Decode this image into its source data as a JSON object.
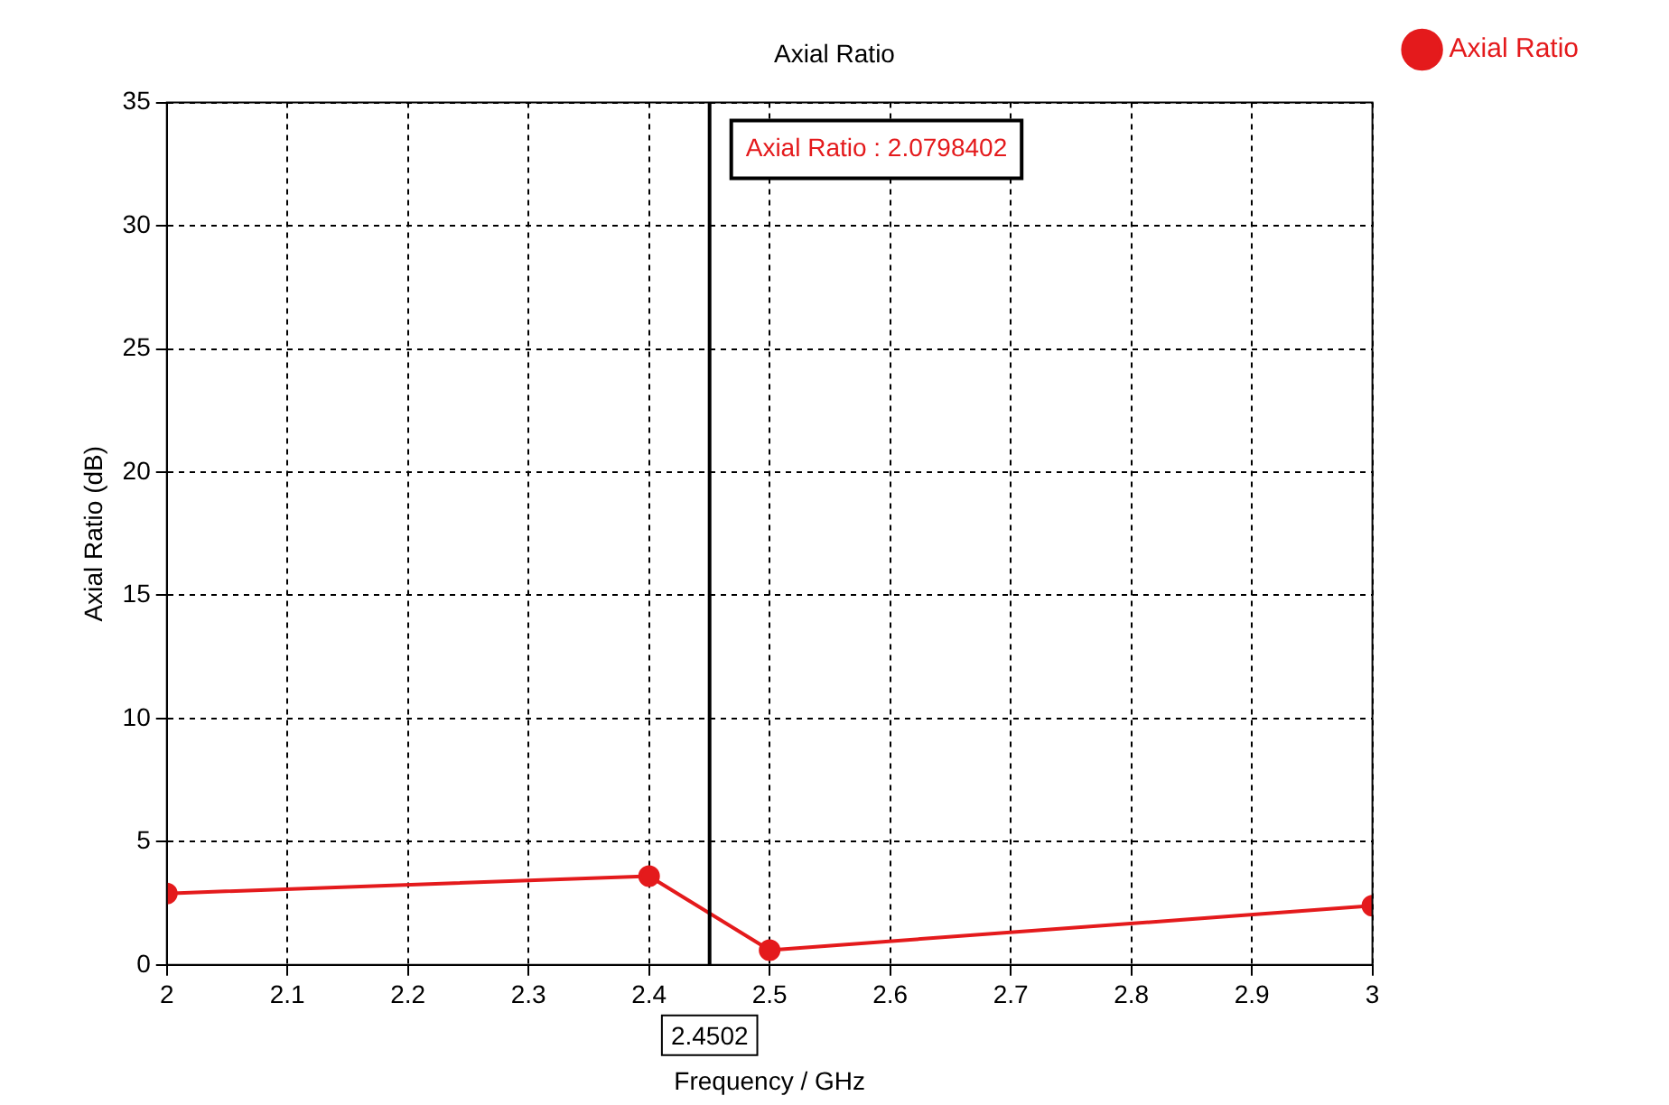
{
  "chart_data": {
    "type": "line",
    "title": "Axial Ratio",
    "xlabel": "Frequency / GHz",
    "ylabel": "Axial Ratio (dB)",
    "x": [
      2,
      2.4,
      2.5,
      3
    ],
    "series": [
      {
        "name": "Axial Ratio",
        "color": "#e41a1c",
        "values": [
          2.9,
          3.6,
          0.6,
          2.4
        ]
      }
    ],
    "xlim": [
      2,
      3
    ],
    "xticks": [
      2,
      2.1,
      2.2,
      2.3,
      2.4,
      2.5,
      2.6,
      2.7,
      2.8,
      2.9,
      3
    ],
    "ylim": [
      0,
      35
    ],
    "yticks": [
      0,
      5,
      10,
      15,
      20,
      25,
      30,
      35
    ],
    "ref_lines": [
      {
        "axis": "x",
        "value": 2.4502,
        "label": "2.4502",
        "color": "#000000"
      }
    ],
    "annotations": [
      "Axial Ratio : 2.0798402"
    ],
    "grid": true,
    "legend": "top right",
    "marker": "circle",
    "line_style": "solid"
  }
}
